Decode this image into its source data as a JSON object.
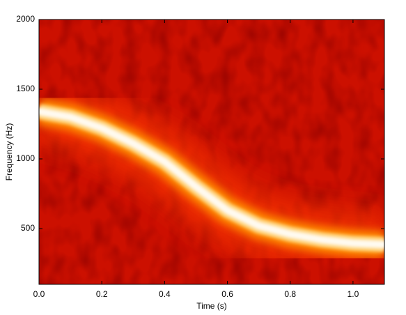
{
  "chart_data": {
    "type": "spectrogram",
    "xlabel": "Time (s)",
    "ylabel": "Frequency (Hz)",
    "x": [
      0,
      0.1,
      0.2,
      0.3,
      0.4,
      0.5,
      0.6,
      0.7,
      0.8,
      0.9,
      1.0,
      1.1
    ],
    "series": [
      {
        "name": "ridge",
        "color": "#fffaf0",
        "values": [
          1340,
          1300,
          1220,
          1110,
          980,
          800,
          630,
          520,
          460,
          420,
          395,
          385
        ]
      }
    ],
    "background_color": "#cc1000",
    "xlim": [
      0,
      1.1
    ],
    "xticks": [
      {
        "value": 0,
        "label": "0.0"
      },
      0.2,
      0.4,
      0.6,
      0.8,
      {
        "value": 1,
        "label": "1.0"
      }
    ],
    "ylim": [
      100,
      2000
    ],
    "yticks": [
      500,
      1000,
      1500,
      2000
    ]
  }
}
